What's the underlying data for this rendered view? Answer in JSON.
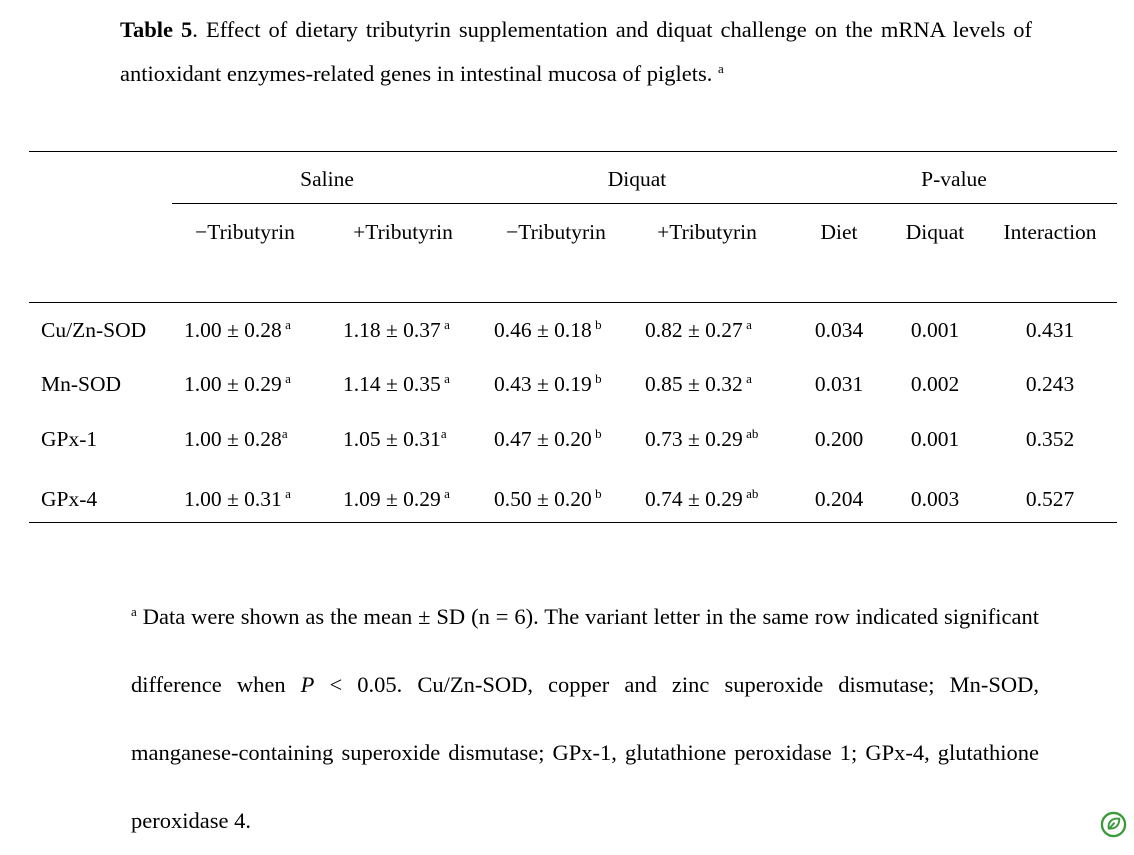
{
  "caption": {
    "label": "Table 5",
    "text": ". Effect of dietary tributyrin supplementation and diquat challenge on the mRNA levels of antioxidant enzymes-related genes in intestinal mucosa of piglets. ",
    "marker": "a"
  },
  "table": {
    "groups": [
      "Saline",
      "Diquat",
      "P-value"
    ],
    "subheaders": [
      "−Tributyrin",
      "+Tributyrin",
      "−Tributyrin",
      "+Tributyrin",
      "Diet",
      "Diquat",
      "Interaction"
    ],
    "rows": [
      {
        "label": "Cu/Zn-SOD",
        "values": [
          {
            "v": "1.00 ± 0.28",
            "s": " a"
          },
          {
            "v": "1.18 ± 0.37",
            "s": " a"
          },
          {
            "v": "0.46 ± 0.18",
            "s": " b"
          },
          {
            "v": "0.82 ± 0.27",
            "s": " a"
          }
        ],
        "p": [
          "0.034",
          "0.001",
          "0.431"
        ]
      },
      {
        "label": "Mn-SOD",
        "values": [
          {
            "v": "1.00 ± 0.29",
            "s": " a"
          },
          {
            "v": "1.14 ± 0.35",
            "s": " a"
          },
          {
            "v": "0.43 ± 0.19",
            "s": " b"
          },
          {
            "v": "0.85 ± 0.32",
            "s": " a"
          }
        ],
        "p": [
          "0.031",
          "0.002",
          "0.243"
        ]
      },
      {
        "label": "GPx-1",
        "values": [
          {
            "v": "1.00 ± 0.28",
            "s": "a"
          },
          {
            "v": "1.05 ± 0.31",
            "s": "a"
          },
          {
            "v": "0.47 ± 0.20",
            "s": " b"
          },
          {
            "v": "0.73 ± 0.29",
            "s": " ab"
          }
        ],
        "p": [
          "0.200",
          "0.001",
          "0.352"
        ]
      },
      {
        "label": "GPx-4",
        "values": [
          {
            "v": "1.00 ± 0.31",
            "s": " a"
          },
          {
            "v": "1.09 ± 0.29",
            "s": " a"
          },
          {
            "v": "0.50 ± 0.20",
            "s": " b"
          },
          {
            "v": "0.74 ± 0.29",
            "s": " ab"
          }
        ],
        "p": [
          "0.204",
          "0.003",
          "0.527"
        ]
      }
    ]
  },
  "footnote": {
    "marker": "a",
    "part1": " Data were shown as the mean ± SD (n = 6). The variant letter in the same row indicated significant difference when ",
    "p_symbol": "P",
    "part2": " < 0.05. Cu/Zn-SOD, copper and zinc superoxide dismutase; Mn-SOD, manganese-containing superoxide dismutase; GPx-1, glutathione peroxidase 1; GPx-4, glutathione peroxidase 4."
  },
  "badge_icon": "leaf-badge-icon",
  "badge_color": "#3a9a3a"
}
